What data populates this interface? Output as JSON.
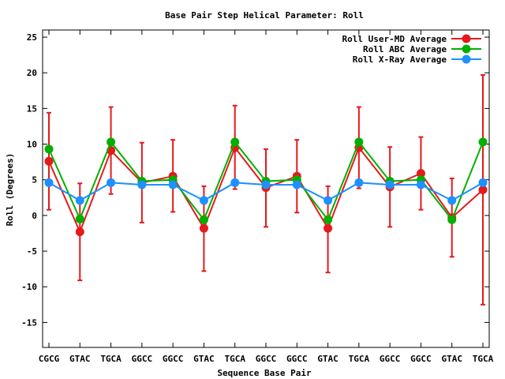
{
  "chart_data": {
    "type": "line",
    "title": "Base Pair Step Helical Parameter: Roll",
    "xlabel": "Sequence Base Pair",
    "ylabel": "Roll (Degrees)",
    "categories": [
      "CGCG",
      "GTAC",
      "TGCA",
      "GGCC",
      "GGCC",
      "GTAC",
      "TGCA",
      "GGCC",
      "GGCC",
      "GTAC",
      "TGCA",
      "GGCC",
      "GGCC",
      "GTAC",
      "TGCA"
    ],
    "ylim": [
      -18.5,
      26
    ],
    "yticks": [
      -15,
      -10,
      -5,
      0,
      5,
      10,
      15,
      20,
      25
    ],
    "grid": false,
    "legend_position": "top-right",
    "series": [
      {
        "name": "Roll User-MD Average",
        "color": "#e41a1c",
        "values": [
          7.6,
          -2.3,
          9.1,
          4.6,
          5.5,
          -1.8,
          9.5,
          3.9,
          5.5,
          -1.8,
          9.5,
          4.0,
          5.9,
          -0.3,
          3.6
        ],
        "error_low": [
          0.8,
          -9.1,
          3.0,
          -1.0,
          0.5,
          -7.8,
          3.7,
          -1.6,
          0.4,
          -8.0,
          3.8,
          -1.6,
          0.8,
          -5.8,
          -12.5
        ],
        "error_high": [
          14.4,
          4.5,
          15.2,
          10.2,
          10.6,
          4.1,
          15.4,
          9.3,
          10.6,
          4.1,
          15.2,
          9.6,
          11.0,
          5.2,
          19.7
        ]
      },
      {
        "name": "Roll ABC Average",
        "color": "#00b000",
        "values": [
          9.3,
          -0.5,
          10.3,
          4.8,
          5.0,
          -0.6,
          10.3,
          4.8,
          5.0,
          -0.6,
          10.3,
          4.8,
          5.0,
          -0.6,
          10.3
        ]
      },
      {
        "name": "Roll X-Ray Average",
        "color": "#1e90ff",
        "values": [
          4.6,
          2.1,
          4.6,
          4.3,
          4.3,
          2.1,
          4.6,
          4.3,
          4.3,
          2.1,
          4.6,
          4.3,
          4.3,
          2.1,
          4.6
        ]
      }
    ]
  }
}
